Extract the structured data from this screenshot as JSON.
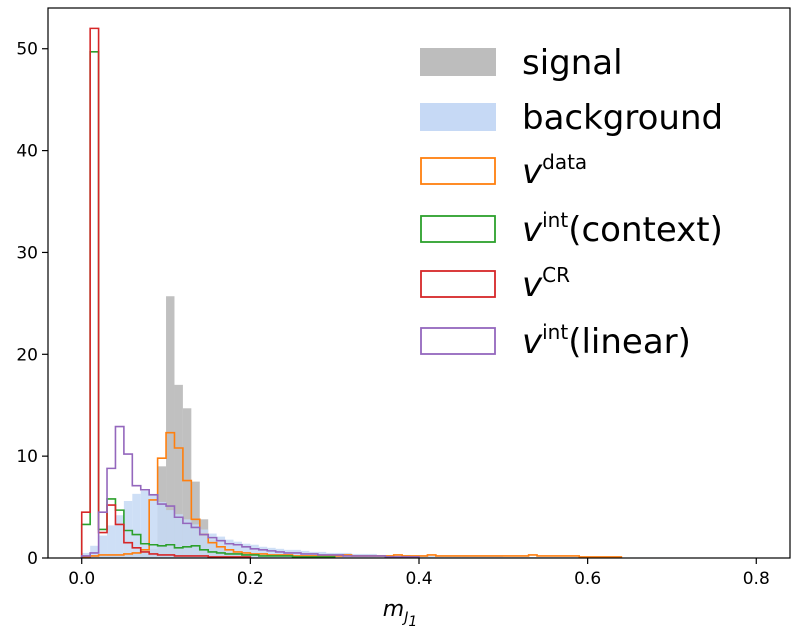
{
  "chart_data": {
    "type": "histogram",
    "title": "",
    "xlabel": "m",
    "xlabel_sub": "J",
    "xlabel_subsub": "1",
    "ylabel": "",
    "xlim": [
      -0.04,
      0.84
    ],
    "ylim": [
      0,
      54
    ],
    "xticks": [
      0.0,
      0.2,
      0.4,
      0.6,
      0.8
    ],
    "xtick_labels": [
      "0.0",
      "0.2",
      "0.4",
      "0.6",
      "0.8"
    ],
    "yticks": [
      0,
      10,
      20,
      30,
      40,
      50
    ],
    "ytick_labels": [
      "0",
      "10",
      "20",
      "30",
      "40",
      "50"
    ],
    "legend_position": "top-right",
    "bin_width": 0.01,
    "x_start": 0.0,
    "series": [
      {
        "name": "signal",
        "style": "filled",
        "color": "#bdbdbd",
        "values": [
          0.1,
          0.2,
          0.2,
          0.3,
          0.3,
          0.4,
          0.5,
          0.7,
          0.9,
          9.0,
          25.7,
          17.0,
          14.7,
          7.5,
          3.8,
          1.8,
          1.0,
          0.6,
          0.4,
          0.3,
          0.2,
          0.2,
          0.1,
          0.1,
          0.1,
          0.1
        ]
      },
      {
        "name": "background",
        "style": "filled",
        "color": "#c6d9f5",
        "values": [
          0.5,
          1.2,
          2.2,
          3.2,
          4.2,
          5.6,
          6.3,
          6.6,
          6.3,
          5.5,
          4.7,
          4.3,
          3.8,
          3.3,
          2.8,
          2.4,
          2.1,
          1.8,
          1.6,
          1.4,
          1.3,
          1.1,
          1.0,
          0.9,
          0.8,
          0.8,
          0.7,
          0.6,
          0.6,
          0.5,
          0.5,
          0.5,
          0.4,
          0.4,
          0.4,
          0.3,
          0.3,
          0.3,
          0.3,
          0.2,
          0.2,
          0.2,
          0.2,
          0.2,
          0.2,
          0.2,
          0.15,
          0.15,
          0.15,
          0.15,
          0.1,
          0.1,
          0.1,
          0.1,
          0.1,
          0.1,
          0.1,
          0.1,
          0.1,
          0.1,
          0.1,
          0.1,
          0.05,
          0.05,
          0.05,
          0.05,
          0.05,
          0.05,
          0.05,
          0.05
        ]
      },
      {
        "name": "v^data",
        "label_base": "v",
        "label_sup": "data",
        "style": "step",
        "color": "#ff7f0e",
        "values": [
          0.1,
          0.2,
          0.3,
          0.3,
          0.3,
          0.4,
          0.5,
          0.8,
          5.7,
          9.8,
          12.3,
          10.8,
          7.6,
          3.8,
          2.3,
          1.5,
          1.1,
          0.8,
          0.6,
          0.5,
          0.4,
          0.4,
          0.3,
          0.3,
          0.3,
          0.2,
          0.2,
          0.2,
          0.2,
          0.2,
          0.2,
          0.3,
          0.2,
          0.2,
          0.2,
          0.2,
          0.2,
          0.3,
          0.2,
          0.2,
          0.2,
          0.3,
          0.2,
          0.2,
          0.2,
          0.2,
          0.2,
          0.2,
          0.2,
          0.2,
          0.2,
          0.2,
          0.2,
          0.3,
          0.2,
          0.2,
          0.2,
          0.2,
          0.2,
          0.1,
          0.1,
          0.1,
          0.1,
          0.1
        ]
      },
      {
        "name": "v^int(context)",
        "label_base": "v",
        "label_sup": "int",
        "label_suffix": "(context)",
        "style": "step",
        "color": "#2ca02c",
        "values": [
          3.3,
          49.7,
          2.8,
          5.8,
          4.7,
          2.7,
          2.3,
          1.4,
          1.3,
          1.2,
          1.3,
          1.0,
          1.1,
          1.2,
          0.8,
          0.6,
          0.5,
          0.4,
          0.4,
          0.3,
          0.3,
          0.2,
          0.2,
          0.2,
          0.2,
          0.1,
          0.1,
          0.1,
          0.1,
          0.1
        ]
      },
      {
        "name": "v^CR",
        "label_base": "v",
        "label_sup": "CR",
        "style": "step",
        "color": "#d62728",
        "values": [
          4.5,
          52.0,
          2.5,
          5.2,
          3.3,
          1.5,
          1.0,
          0.6,
          0.4,
          0.3,
          0.3,
          0.2,
          0.2,
          0.2,
          0.2,
          0.1,
          0.1,
          0.1,
          0.1,
          0.1
        ]
      },
      {
        "name": "v^int(linear)",
        "label_base": "v",
        "label_sup": "int",
        "label_suffix": "(linear)",
        "style": "step",
        "color": "#9467bd",
        "values": [
          0.2,
          0.5,
          4.5,
          8.8,
          12.9,
          10.2,
          7.1,
          6.7,
          6.2,
          5.3,
          5.1,
          4.0,
          3.4,
          3.0,
          2.3,
          2.0,
          1.7,
          1.4,
          1.3,
          1.1,
          0.9,
          0.8,
          0.7,
          0.6,
          0.5,
          0.5,
          0.4,
          0.4,
          0.3,
          0.3,
          0.3,
          0.2,
          0.2,
          0.2,
          0.2,
          0.2,
          0.1,
          0.1,
          0.1,
          0.1
        ]
      }
    ]
  }
}
